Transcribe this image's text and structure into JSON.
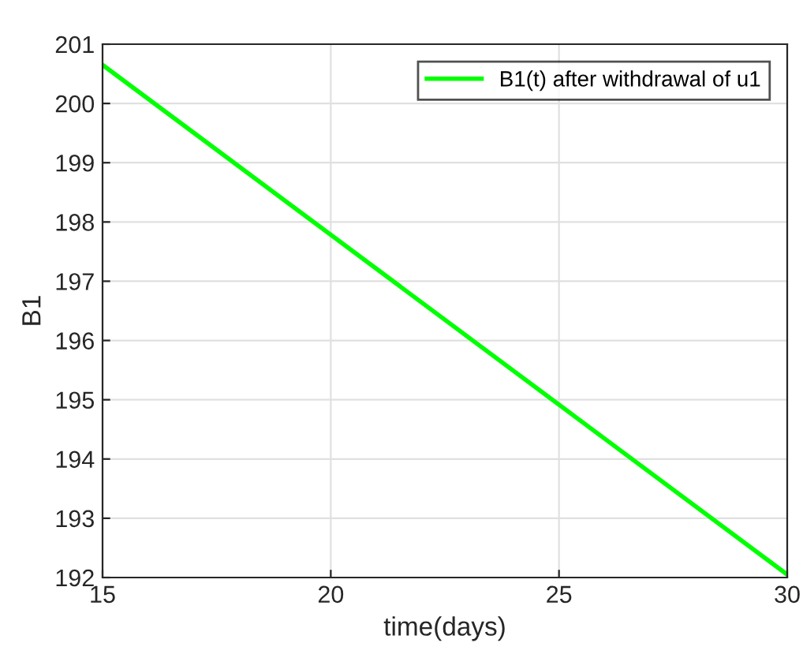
{
  "chart_data": {
    "type": "line",
    "xlabel": "time(days)",
    "ylabel": "B1",
    "x": [
      15,
      30
    ],
    "series": [
      {
        "name": "B1(t) after withdrawal of u1",
        "color": "#00ff00",
        "values": [
          200.65,
          192.05
        ]
      }
    ],
    "xlim": [
      15,
      30
    ],
    "xticks": [
      15,
      20,
      25,
      30
    ],
    "ylim": [
      192,
      201
    ],
    "yticks": [
      192,
      193,
      194,
      195,
      196,
      197,
      198,
      199,
      200,
      201
    ],
    "grid": true,
    "legend": "top right",
    "line_style": "solid"
  }
}
